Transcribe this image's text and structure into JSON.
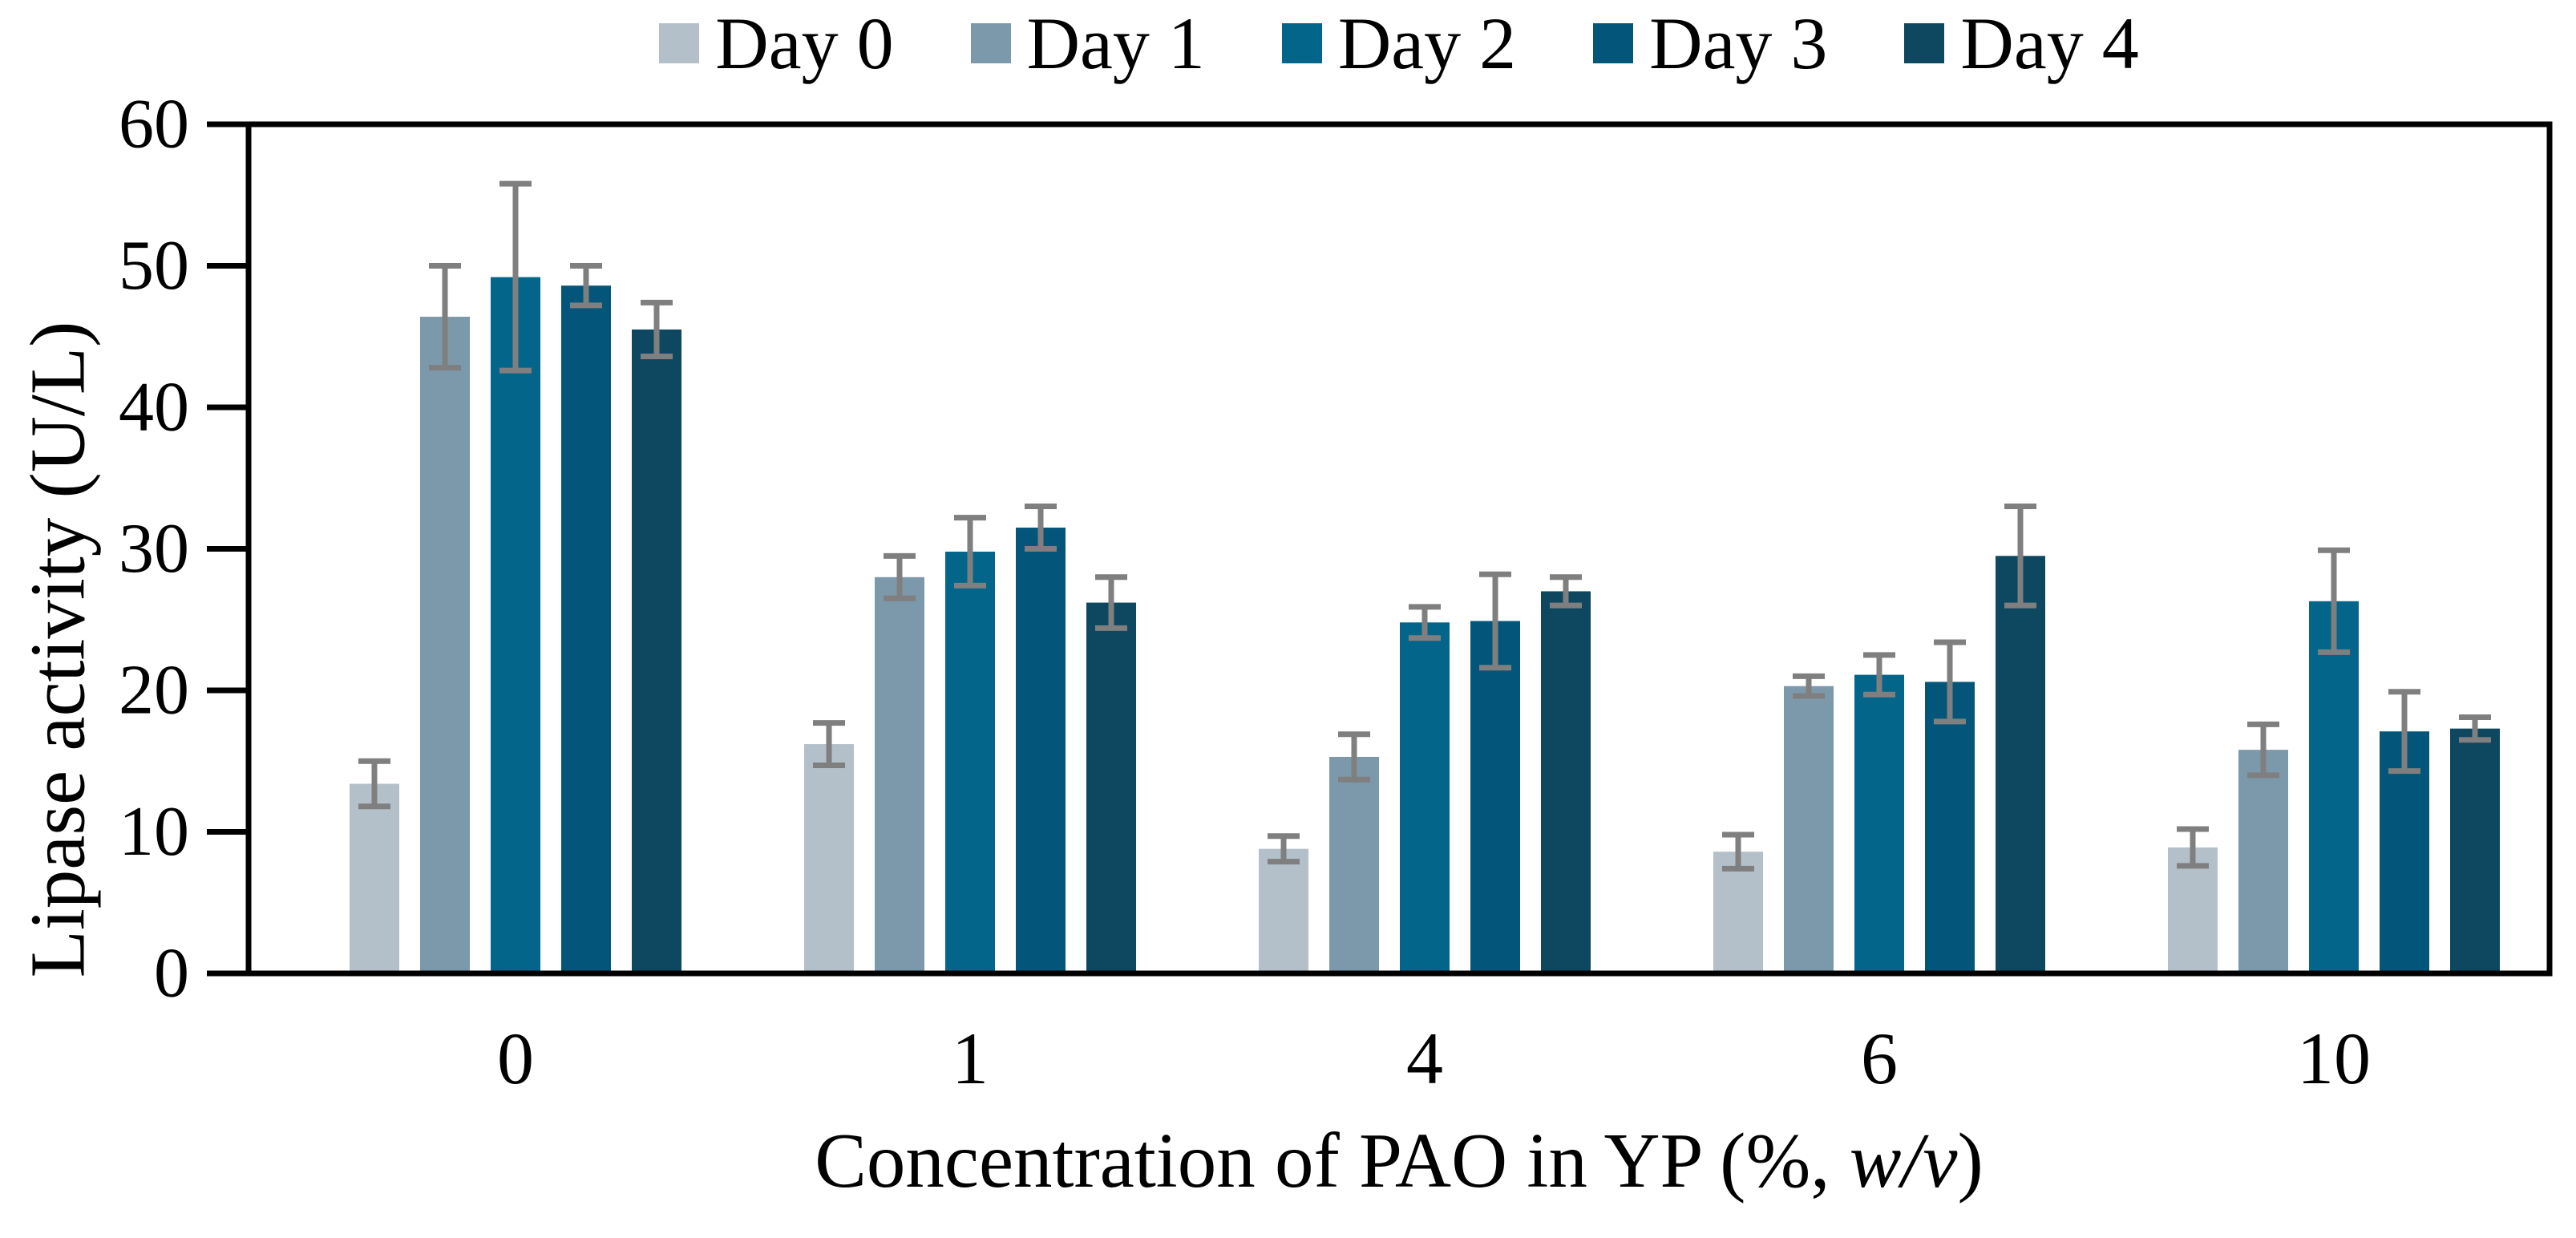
{
  "chart_data": {
    "type": "bar",
    "title": "",
    "categories": [
      "0",
      "1",
      "4",
      "6",
      "10"
    ],
    "series": [
      {
        "name": "Day 0",
        "color": "#b3c0c9",
        "values": [
          13.4,
          16.2,
          8.8,
          8.6,
          8.9
        ],
        "errors": [
          1.6,
          1.5,
          0.9,
          1.2,
          1.3
        ]
      },
      {
        "name": "Day 1",
        "color": "#7c99ab",
        "values": [
          46.4,
          28.0,
          15.3,
          20.3,
          15.8
        ],
        "errors": [
          3.6,
          1.5,
          1.6,
          0.7,
          1.8
        ]
      },
      {
        "name": "Day 2",
        "color": "#04658a",
        "values": [
          49.2,
          29.8,
          24.8,
          21.1,
          26.3
        ],
        "errors": [
          6.6,
          2.4,
          1.1,
          1.4,
          3.6
        ]
      },
      {
        "name": "Day 3",
        "color": "#03567a",
        "values": [
          48.6,
          31.5,
          24.9,
          20.6,
          17.1
        ],
        "errors": [
          1.4,
          1.5,
          3.3,
          2.8,
          2.8
        ]
      },
      {
        "name": "Day 4",
        "color": "#0e4760",
        "values": [
          45.5,
          26.2,
          27.0,
          29.5,
          17.3
        ],
        "errors": [
          1.9,
          1.8,
          1.0,
          3.5,
          0.8
        ]
      }
    ],
    "xlabel": "Concentration of PAO in YP (%, w/v)",
    "xlabel_parts": {
      "prefix": "Concentration of PAO in YP (%, ",
      "italic": "w/v",
      "suffix": ")"
    },
    "ylabel": "Lipase activity (U/L)",
    "ylim": [
      0,
      60
    ],
    "ytick_step": 10,
    "yticks": [
      "0",
      "10",
      "20",
      "30",
      "40",
      "50",
      "60"
    ],
    "legend_position": "top",
    "grid": false,
    "error_bar_color": "#7f7f7f",
    "axis_color": "#000000",
    "background_color": "#ffffff"
  }
}
